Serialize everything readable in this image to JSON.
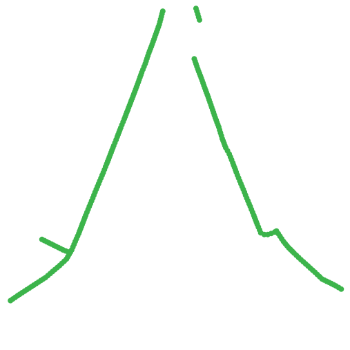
{
  "chart_data": {
    "type": "scatter",
    "title": "",
    "xlabel": "",
    "ylabel": "",
    "grid": false,
    "axes_visible": false,
    "legend": "none",
    "marker_color": "#3cb44b",
    "xlim": [
      0,
      1
    ],
    "ylim": [
      0,
      1
    ],
    "series": [
      {
        "points": [
          [
            0.03,
            0.141
          ],
          [
            0.05,
            0.155
          ],
          [
            0.07,
            0.168
          ],
          [
            0.09,
            0.181
          ],
          [
            0.11,
            0.194
          ],
          [
            0.13,
            0.207
          ],
          [
            0.15,
            0.224
          ],
          [
            0.17,
            0.241
          ],
          [
            0.19,
            0.26
          ],
          [
            0.205,
            0.286
          ],
          [
            0.215,
            0.31
          ],
          [
            0.225,
            0.333
          ],
          [
            0.235,
            0.359
          ],
          [
            0.245,
            0.385
          ],
          [
            0.255,
            0.41
          ],
          [
            0.265,
            0.434
          ],
          [
            0.275,
            0.459
          ],
          [
            0.285,
            0.483
          ],
          [
            0.295,
            0.507
          ],
          [
            0.305,
            0.532
          ],
          [
            0.315,
            0.558
          ],
          [
            0.325,
            0.584
          ],
          [
            0.335,
            0.609
          ],
          [
            0.345,
            0.635
          ],
          [
            0.355,
            0.66
          ],
          [
            0.365,
            0.686
          ],
          [
            0.375,
            0.712
          ],
          [
            0.385,
            0.738
          ],
          [
            0.395,
            0.765
          ],
          [
            0.405,
            0.793
          ],
          [
            0.415,
            0.818
          ],
          [
            0.425,
            0.848
          ],
          [
            0.435,
            0.874
          ],
          [
            0.445,
            0.902
          ],
          [
            0.455,
            0.93
          ],
          [
            0.465,
            0.968
          ],
          [
            0.56,
            0.976
          ],
          [
            0.57,
            0.943
          ],
          [
            0.555,
            0.832
          ],
          [
            0.565,
            0.803
          ],
          [
            0.575,
            0.777
          ],
          [
            0.585,
            0.749
          ],
          [
            0.595,
            0.722
          ],
          [
            0.605,
            0.693
          ],
          [
            0.615,
            0.664
          ],
          [
            0.625,
            0.637
          ],
          [
            0.635,
            0.604
          ],
          [
            0.645,
            0.578
          ],
          [
            0.655,
            0.56
          ],
          [
            0.665,
            0.535
          ],
          [
            0.675,
            0.508
          ],
          [
            0.685,
            0.483
          ],
          [
            0.695,
            0.459
          ],
          [
            0.705,
            0.434
          ],
          [
            0.715,
            0.41
          ],
          [
            0.725,
            0.385
          ],
          [
            0.735,
            0.359
          ],
          [
            0.745,
            0.335
          ],
          [
            0.755,
            0.33
          ],
          [
            0.765,
            0.33
          ],
          [
            0.775,
            0.333
          ],
          [
            0.785,
            0.337
          ],
          [
            0.79,
            0.34
          ],
          [
            0.8,
            0.325
          ],
          [
            0.81,
            0.31
          ],
          [
            0.825,
            0.292
          ],
          [
            0.84,
            0.277
          ],
          [
            0.86,
            0.258
          ],
          [
            0.88,
            0.24
          ],
          [
            0.9,
            0.222
          ],
          [
            0.92,
            0.203
          ],
          [
            0.94,
            0.193
          ],
          [
            0.96,
            0.183
          ],
          [
            0.975,
            0.174
          ],
          [
            0.12,
            0.316
          ],
          [
            0.14,
            0.306
          ],
          [
            0.16,
            0.296
          ],
          [
            0.18,
            0.286
          ],
          [
            0.195,
            0.28
          ]
        ]
      }
    ]
  }
}
